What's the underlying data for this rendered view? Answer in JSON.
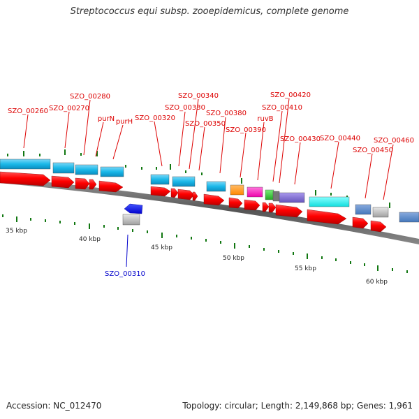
{
  "title": "Streptococcus equi subsp. zooepidemicus, complete genome",
  "footer": {
    "accession": "Accession: NC_012470",
    "stats": "Topology: circular; Length: 2,149,868 bp; Genes: 1,961"
  },
  "colors": {
    "forward_label": "#dd0000",
    "reverse_label": "#0000cc",
    "cds": "#ff0000",
    "cog_blue": "#1ab8e8",
    "cog_orange": "#ff8c00",
    "cog_magenta": "#ff22bb",
    "cog_green": "#33cc33",
    "cog_purple": "#8866cc",
    "cog_cyan": "#22e8e8",
    "cog_gray": "#bbbbbb",
    "reverse_cds": "#0011ee",
    "backbone": "#666666",
    "tick": "#117711"
  },
  "scale_labels": [
    "35 kbp",
    "40 kbp",
    "45 kbp",
    "50 kbp",
    "55 kbp",
    "60 kbp"
  ],
  "forward_genes": [
    {
      "label": "SZO_00260"
    },
    {
      "label": "SZO_00270"
    },
    {
      "label": "SZO_00280"
    },
    {
      "label": "purN"
    },
    {
      "label": "purH"
    },
    {
      "label": "SZO_00320"
    },
    {
      "label": "SZO_00330"
    },
    {
      "label": "SZO_00340"
    },
    {
      "label": "SZO_00350"
    },
    {
      "label": "SZO_00380"
    },
    {
      "label": "SZO_00390"
    },
    {
      "label": "ruvB"
    },
    {
      "label": "SZO_00410"
    },
    {
      "label": "SZO_00420"
    },
    {
      "label": "SZO_00430"
    },
    {
      "label": "SZO_00440"
    },
    {
      "label": "SZO_00450"
    },
    {
      "label": "SZO_00460"
    }
  ],
  "reverse_genes": [
    {
      "label": "SZO_00310"
    }
  ]
}
